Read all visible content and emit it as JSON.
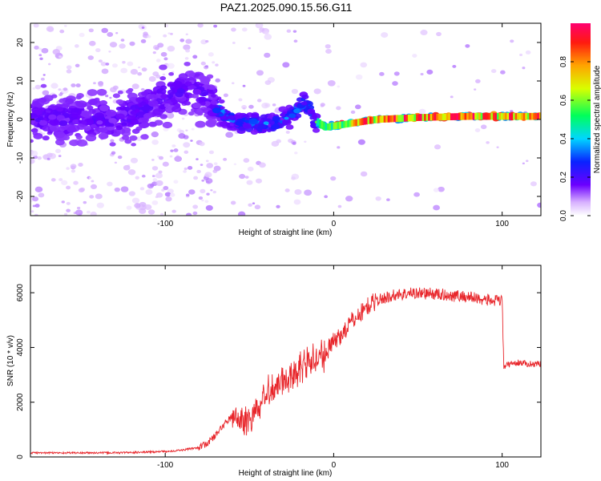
{
  "title": "PAZ1.2025.090.15.56.G11",
  "chart_data": [
    {
      "type": "heatmap",
      "xlabel": "Height of straight line (km)",
      "ylabel": "Frequency (Hz)",
      "xlim": [
        -180,
        123
      ],
      "ylim": [
        -25,
        25
      ],
      "xticks": [
        -100,
        0,
        100
      ],
      "yticks": [
        -20,
        -10,
        0,
        10,
        20
      ],
      "colorbar": {
        "label": "Normalized spectral amplitude",
        "range": [
          0,
          1
        ],
        "ticks": [
          0.0,
          0.2,
          0.4,
          0.6,
          0.8
        ]
      },
      "ridge": [
        {
          "x": -180,
          "y": 0
        },
        {
          "x": -150,
          "y": 0
        },
        {
          "x": -120,
          "y": 1
        },
        {
          "x": -100,
          "y": 6
        },
        {
          "x": -85,
          "y": 8
        },
        {
          "x": -75,
          "y": 6
        },
        {
          "x": -65,
          "y": 1
        },
        {
          "x": -55,
          "y": -1
        },
        {
          "x": -45,
          "y": -1
        },
        {
          "x": -35,
          "y": -1
        },
        {
          "x": -25,
          "y": 1
        },
        {
          "x": -17,
          "y": 5
        },
        {
          "x": -12,
          "y": 0
        },
        {
          "x": -5,
          "y": -2
        },
        {
          "x": 10,
          "y": -1
        },
        {
          "x": 25,
          "y": 0
        },
        {
          "x": 50,
          "y": 0.5
        },
        {
          "x": 80,
          "y": 0.8
        },
        {
          "x": 100,
          "y": 0.8
        },
        {
          "x": 123,
          "y": 0.8
        }
      ]
    },
    {
      "type": "line",
      "xlabel": "Height of straight line (km)",
      "ylabel": "SNR (10 * v/v)",
      "xlim": [
        -180,
        123
      ],
      "ylim": [
        0,
        7000
      ],
      "xticks": [
        -100,
        0,
        100
      ],
      "yticks": [
        0,
        2000,
        4000,
        6000
      ],
      "series": [
        {
          "color": "#e8262b",
          "x": [
            -180,
            -160,
            -140,
            -120,
            -100,
            -90,
            -80,
            -75,
            -70,
            -65,
            -60,
            -55,
            -50,
            -45,
            -40,
            -35,
            -30,
            -25,
            -20,
            -15,
            -10,
            -5,
            0,
            5,
            10,
            15,
            20,
            25,
            30,
            35,
            40,
            50,
            60,
            70,
            80,
            90,
            95,
            100,
            101,
            105,
            110,
            115,
            123
          ],
          "y": [
            150,
            150,
            150,
            160,
            200,
            250,
            350,
            500,
            800,
            1200,
            1500,
            1300,
            1400,
            1700,
            2300,
            2600,
            2800,
            3000,
            3300,
            3500,
            3500,
            3800,
            4200,
            4500,
            4900,
            5200,
            5500,
            5700,
            5800,
            5900,
            5950,
            6000,
            5950,
            5900,
            5850,
            5750,
            5700,
            5700,
            3300,
            3400,
            3450,
            3400,
            3400
          ]
        }
      ]
    }
  ]
}
